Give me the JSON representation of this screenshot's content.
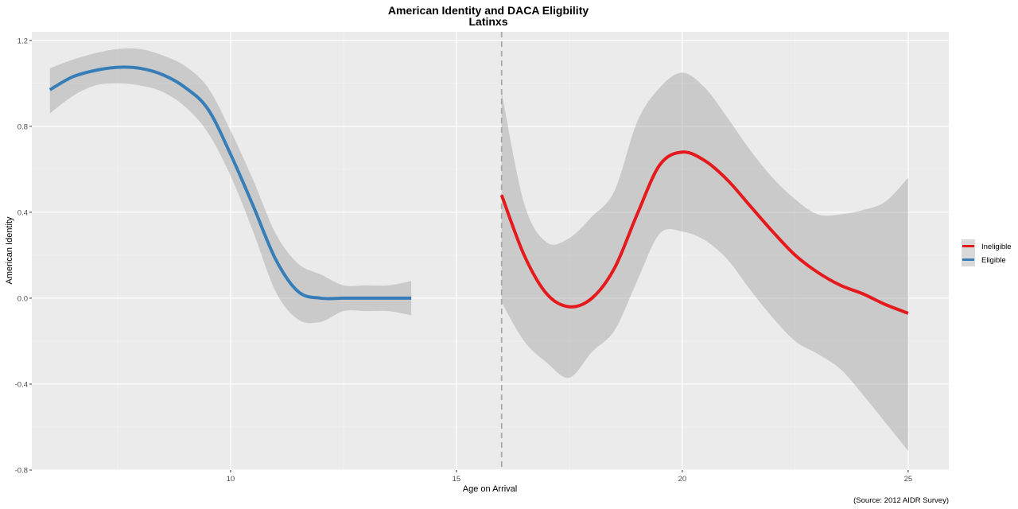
{
  "chart_data": {
    "type": "line",
    "title": "American Identity and DACA Eligbility",
    "subtitle": "Latinxs",
    "xlabel": "Age on Arrival",
    "ylabel": "American Identity",
    "caption": "(Source: 2012 AIDR Survey)",
    "xlim": [
      5.6,
      25.9
    ],
    "ylim": [
      -0.8,
      1.24
    ],
    "x_ticks": [
      10,
      15,
      20,
      25
    ],
    "x_tick_labels": [
      "10",
      "15",
      "20",
      "25"
    ],
    "y_ticks": [
      -0.8,
      -0.4,
      0.0,
      0.4,
      0.8,
      1.2
    ],
    "y_tick_labels": [
      "-0.8",
      "-0.4",
      "0.0",
      "0.4",
      "0.8",
      "1.2"
    ],
    "cutoff_line": {
      "x": 16,
      "style": "dashed"
    },
    "legend": {
      "position": "right",
      "entries": [
        "Ineligible",
        "Eligible"
      ]
    },
    "series": [
      {
        "name": "Eligible",
        "color": "#377eb8",
        "x": [
          6,
          6.5,
          7,
          7.5,
          8,
          8.5,
          9,
          9.5,
          10,
          10.5,
          11,
          11.5,
          12,
          12.5,
          13,
          13.5,
          14
        ],
        "y": [
          0.97,
          1.03,
          1.06,
          1.075,
          1.07,
          1.04,
          0.98,
          0.88,
          0.67,
          0.43,
          0.18,
          0.03,
          0.0,
          0.0,
          0.0,
          0.0,
          0.0
        ],
        "lower": [
          0.86,
          0.94,
          0.99,
          1.0,
          0.99,
          0.96,
          0.89,
          0.77,
          0.57,
          0.31,
          0.03,
          -0.1,
          -0.11,
          -0.06,
          -0.06,
          -0.06,
          -0.08
        ],
        "upper": [
          1.07,
          1.11,
          1.14,
          1.16,
          1.16,
          1.13,
          1.08,
          0.98,
          0.78,
          0.55,
          0.3,
          0.16,
          0.11,
          0.06,
          0.06,
          0.06,
          0.08
        ]
      },
      {
        "name": "Ineligible",
        "color": "#e41a1c",
        "x": [
          16,
          16.5,
          17,
          17.5,
          18,
          18.5,
          19,
          19.5,
          20,
          20.5,
          21,
          21.5,
          22,
          22.5,
          23,
          23.5,
          24,
          24.5,
          25
        ],
        "y": [
          0.48,
          0.2,
          0.02,
          -0.04,
          0.0,
          0.14,
          0.39,
          0.62,
          0.68,
          0.64,
          0.55,
          0.43,
          0.31,
          0.2,
          0.12,
          0.06,
          0.02,
          -0.03,
          -0.07
        ],
        "lower": [
          -0.02,
          -0.2,
          -0.3,
          -0.37,
          -0.25,
          -0.15,
          0.08,
          0.3,
          0.31,
          0.27,
          0.18,
          0.04,
          -0.09,
          -0.2,
          -0.26,
          -0.33,
          -0.45,
          -0.58,
          -0.71
        ],
        "upper": [
          0.96,
          0.44,
          0.26,
          0.28,
          0.38,
          0.5,
          0.82,
          0.98,
          1.05,
          0.98,
          0.84,
          0.69,
          0.56,
          0.46,
          0.39,
          0.39,
          0.41,
          0.45,
          0.56
        ]
      }
    ]
  }
}
